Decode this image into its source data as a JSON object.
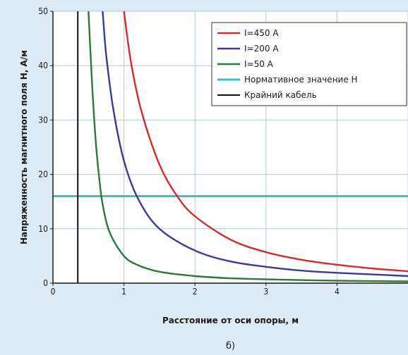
{
  "colors": {
    "background": "#dcebf5",
    "plot_background": "#ffffff",
    "grid": "#b4c8d8"
  },
  "chart_data": {
    "type": "line",
    "xlabel": "Расстояние от оси опоры, м",
    "ylabel": "Напряженность магнитного поля Н, А/м",
    "caption": "б)",
    "xlim": [
      0,
      5
    ],
    "ylim": [
      0,
      50
    ],
    "x_ticks": [
      "0",
      "1",
      "2",
      "3",
      "4"
    ],
    "y_ticks": [
      "0",
      "10",
      "20",
      "30",
      "40",
      "50"
    ],
    "grid": true,
    "legend_position": "top-right",
    "series": [
      {
        "name": "I=450 A",
        "color": "#d42a2a",
        "x": [
          1.0,
          1.1,
          1.25,
          1.5,
          1.75,
          2.0,
          2.5,
          3.0,
          3.5,
          4.0,
          4.5,
          5.0
        ],
        "y": [
          50.0,
          40.5,
          31.4,
          21.8,
          16.0,
          12.3,
          8.0,
          5.7,
          4.3,
          3.4,
          2.7,
          2.2
        ]
      },
      {
        "name": "I=200 A",
        "color": "#3a3a9a",
        "x": [
          0.7,
          0.75,
          0.85,
          1.0,
          1.2,
          1.5,
          2.0,
          2.5,
          3.0,
          3.5,
          4.0,
          4.5,
          5.0
        ],
        "y": [
          50.0,
          42.0,
          32.0,
          22.5,
          15.5,
          10.0,
          6.0,
          4.0,
          3.0,
          2.3,
          1.9,
          1.6,
          1.3
        ]
      },
      {
        "name": "I=50 A",
        "color": "#2a7a3a",
        "x": [
          0.5,
          0.55,
          0.6,
          0.65,
          0.7,
          0.8,
          1.0,
          1.2,
          1.5,
          2.0,
          2.5,
          3.0,
          4.0,
          5.0
        ],
        "y": [
          50.0,
          37.0,
          26.5,
          19.5,
          14.5,
          9.3,
          5.0,
          3.3,
          2.1,
          1.3,
          0.9,
          0.7,
          0.45,
          0.32
        ]
      }
    ],
    "reference_lines": [
      {
        "name": "Нормативное значение Н",
        "orientation": "horizontal",
        "value": 16,
        "color": "#3cc0cc"
      },
      {
        "name": "Крайний кабель",
        "orientation": "vertical",
        "value": 0.35,
        "color": "#111111"
      }
    ]
  }
}
